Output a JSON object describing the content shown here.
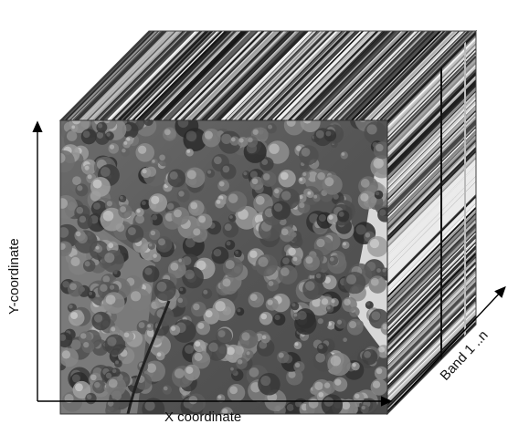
{
  "labels": {
    "x_axis": "X coordinate",
    "y_axis": "Y-coordinate",
    "band_axis": "Band 1 ..n"
  },
  "colors": {
    "axis": "#000000",
    "canopy_dark": "#2a2a2a",
    "canopy_light": "#9a9a9a",
    "background": "#ffffff"
  },
  "cube": {
    "front_face": "aerial grayscale image of forest canopy",
    "top_face": "spectral streaks",
    "side_face": "spectral streaks"
  }
}
